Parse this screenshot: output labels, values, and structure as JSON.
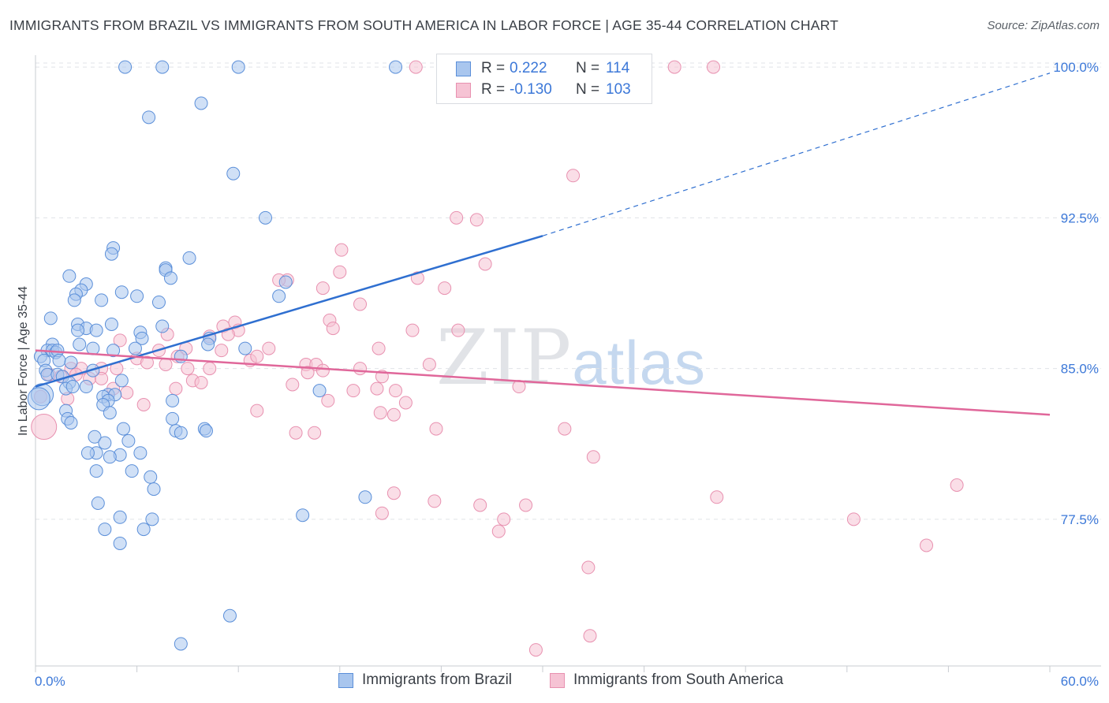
{
  "title": "IMMIGRANTS FROM BRAZIL VS IMMIGRANTS FROM SOUTH AMERICA IN LABOR FORCE | AGE 35-44 CORRELATION CHART",
  "source": "Source: ZipAtlas.com",
  "watermark": {
    "part1": "ZIP",
    "part2": "atlas"
  },
  "legend": {
    "rows": [
      {
        "r_label": "R =",
        "r_value": "0.222",
        "n_label": "N =",
        "n_value": "114"
      },
      {
        "r_label": "R =",
        "r_value": "-0.130",
        "n_label": "N =",
        "n_value": "103"
      }
    ]
  },
  "bottom_legend": [
    "Immigrants from Brazil",
    "Immigrants from South America"
  ],
  "colors": {
    "brazil_fill": "#a9c6ee",
    "brazil_stroke": "#5b8fd9",
    "brazil_line": "#2f6fd0",
    "sa_fill": "#f6c3d4",
    "sa_stroke": "#e891b0",
    "sa_line": "#e0679a",
    "tick_text": "#3c78d8",
    "grid": "#e0e3e8"
  },
  "chart_data": {
    "type": "scatter",
    "title": "IMMIGRANTS FROM BRAZIL VS IMMIGRANTS FROM SOUTH AMERICA IN LABOR FORCE | AGE 35-44 CORRELATION CHART",
    "xlabel": "",
    "ylabel": "In Labor Force | Age 35-44",
    "xlim": [
      0,
      60
    ],
    "ylim": [
      70.2,
      100.2
    ],
    "x_tick_labels": [
      "0.0%",
      "60.0%"
    ],
    "y_ticks": [
      77.5,
      85.0,
      92.5,
      100.0
    ],
    "y_tick_labels": [
      "77.5%",
      "85.0%",
      "92.5%",
      "100.0%"
    ],
    "grid": true,
    "legend_position": "top-center",
    "series": [
      {
        "name": "Immigrants from Brazil",
        "R": 0.222,
        "N": 114,
        "trend": {
          "x0": 0,
          "y0": 84.1,
          "x1": 30,
          "y1": 91.6,
          "dashed_to_x": 60,
          "dashed_to_y": 99.7
        },
        "points": [
          [
            5.3,
            100
          ],
          [
            7.5,
            100
          ],
          [
            12.0,
            100
          ],
          [
            21.3,
            100
          ],
          [
            6.7,
            97.5
          ],
          [
            9.8,
            98.2
          ],
          [
            11.7,
            94.7
          ],
          [
            13.6,
            92.5
          ],
          [
            9.1,
            90.5
          ],
          [
            7.7,
            90.0
          ],
          [
            4.6,
            91.0
          ],
          [
            4.5,
            90.7
          ],
          [
            7.7,
            89.9
          ],
          [
            8.0,
            89.5
          ],
          [
            14.8,
            89.3
          ],
          [
            2.0,
            89.6
          ],
          [
            3.0,
            89.2
          ],
          [
            5.1,
            88.8
          ],
          [
            2.7,
            88.9
          ],
          [
            2.4,
            88.7
          ],
          [
            6.0,
            88.6
          ],
          [
            14.4,
            88.6
          ],
          [
            2.3,
            88.4
          ],
          [
            3.9,
            88.4
          ],
          [
            7.3,
            88.3
          ],
          [
            0.9,
            87.5
          ],
          [
            2.5,
            87.2
          ],
          [
            4.5,
            87.2
          ],
          [
            3.0,
            87.0
          ],
          [
            3.6,
            86.9
          ],
          [
            2.5,
            86.9
          ],
          [
            6.2,
            86.8
          ],
          [
            6.3,
            86.5
          ],
          [
            7.5,
            87.1
          ],
          [
            10.3,
            86.5
          ],
          [
            1.0,
            86.2
          ],
          [
            2.6,
            86.2
          ],
          [
            0.7,
            85.9
          ],
          [
            1.0,
            85.9
          ],
          [
            1.2,
            85.8
          ],
          [
            1.3,
            85.9
          ],
          [
            3.4,
            86.0
          ],
          [
            4.6,
            85.9
          ],
          [
            5.9,
            86.0
          ],
          [
            12.4,
            86.0
          ],
          [
            10.2,
            86.2
          ],
          [
            8.6,
            85.6
          ],
          [
            0.3,
            85.6
          ],
          [
            0.5,
            85.4
          ],
          [
            1.4,
            85.4
          ],
          [
            2.1,
            85.3
          ],
          [
            0.6,
            84.9
          ],
          [
            0.7,
            84.7
          ],
          [
            1.3,
            84.7
          ],
          [
            1.6,
            84.6
          ],
          [
            3.4,
            84.9
          ],
          [
            2.0,
            84.3
          ],
          [
            3.0,
            84.1
          ],
          [
            5.1,
            84.4
          ],
          [
            1.8,
            84.0
          ],
          [
            2.2,
            84.1
          ],
          [
            0.4,
            83.7
          ],
          [
            0.2,
            83.5
          ],
          [
            4.3,
            83.7
          ],
          [
            4.0,
            83.6
          ],
          [
            4.7,
            83.7
          ],
          [
            4.3,
            83.4
          ],
          [
            4.0,
            83.2
          ],
          [
            8.1,
            83.4
          ],
          [
            1.8,
            82.9
          ],
          [
            4.4,
            82.8
          ],
          [
            8.1,
            82.5
          ],
          [
            1.9,
            82.5
          ],
          [
            2.1,
            82.3
          ],
          [
            5.2,
            82.0
          ],
          [
            10.0,
            82.0
          ],
          [
            8.3,
            81.9
          ],
          [
            8.6,
            81.8
          ],
          [
            10.1,
            81.9
          ],
          [
            3.5,
            81.6
          ],
          [
            4.1,
            81.3
          ],
          [
            5.5,
            81.4
          ],
          [
            3.6,
            80.8
          ],
          [
            3.1,
            80.8
          ],
          [
            5.0,
            80.7
          ],
          [
            4.4,
            80.6
          ],
          [
            6.2,
            80.8
          ],
          [
            3.6,
            79.9
          ],
          [
            5.7,
            79.9
          ],
          [
            6.8,
            79.6
          ],
          [
            7.0,
            79.0
          ],
          [
            16.8,
            83.9
          ],
          [
            19.5,
            78.6
          ],
          [
            3.7,
            78.3
          ],
          [
            5.0,
            77.6
          ],
          [
            6.9,
            77.5
          ],
          [
            4.1,
            77.0
          ],
          [
            6.4,
            77.0
          ],
          [
            5.0,
            76.3
          ],
          [
            15.8,
            77.7
          ],
          [
            11.5,
            72.7
          ],
          [
            8.6,
            71.3
          ]
        ]
      },
      {
        "name": "Immigrants from South America",
        "R": -0.13,
        "N": 103,
        "trend": {
          "x0": 0,
          "y0": 85.9,
          "x1": 60,
          "y1": 82.7
        },
        "points": [
          [
            22.5,
            100
          ],
          [
            27.0,
            100
          ],
          [
            37.8,
            100
          ],
          [
            40.1,
            100
          ],
          [
            31.8,
            94.6
          ],
          [
            24.9,
            92.5
          ],
          [
            26.1,
            92.4
          ],
          [
            18.1,
            90.9
          ],
          [
            26.6,
            90.2
          ],
          [
            18.0,
            89.8
          ],
          [
            22.6,
            89.5
          ],
          [
            14.9,
            89.4
          ],
          [
            14.4,
            89.4
          ],
          [
            24.2,
            89.0
          ],
          [
            17.0,
            89.0
          ],
          [
            19.2,
            88.2
          ],
          [
            17.4,
            87.4
          ],
          [
            11.8,
            87.3
          ],
          [
            11.1,
            87.1
          ],
          [
            12.0,
            86.9
          ],
          [
            17.6,
            87.0
          ],
          [
            11.4,
            86.7
          ],
          [
            10.3,
            86.6
          ],
          [
            22.3,
            86.9
          ],
          [
            25.0,
            86.9
          ],
          [
            7.8,
            86.7
          ],
          [
            5.0,
            86.4
          ],
          [
            8.9,
            86.0
          ],
          [
            13.8,
            86.0
          ],
          [
            20.3,
            86.0
          ],
          [
            7.3,
            85.9
          ],
          [
            11.0,
            85.9
          ],
          [
            12.7,
            85.4
          ],
          [
            13.1,
            85.6
          ],
          [
            8.4,
            85.6
          ],
          [
            6.0,
            85.5
          ],
          [
            6.6,
            85.3
          ],
          [
            7.7,
            85.2
          ],
          [
            16.0,
            85.2
          ],
          [
            16.6,
            85.2
          ],
          [
            19.2,
            85.0
          ],
          [
            23.3,
            85.2
          ],
          [
            2.1,
            85.0
          ],
          [
            2.7,
            85.0
          ],
          [
            3.9,
            85.0
          ],
          [
            4.8,
            85.0
          ],
          [
            9.0,
            85.0
          ],
          [
            10.3,
            85.0
          ],
          [
            16.1,
            84.8
          ],
          [
            17.0,
            84.9
          ],
          [
            20.5,
            84.6
          ],
          [
            2.4,
            84.7
          ],
          [
            1.5,
            84.6
          ],
          [
            0.8,
            84.7
          ],
          [
            3.2,
            84.5
          ],
          [
            3.9,
            84.5
          ],
          [
            9.3,
            84.4
          ],
          [
            9.8,
            84.3
          ],
          [
            15.2,
            84.2
          ],
          [
            20.2,
            84.0
          ],
          [
            28.6,
            84.1
          ],
          [
            4.6,
            84.0
          ],
          [
            8.3,
            84.0
          ],
          [
            5.4,
            83.8
          ],
          [
            18.8,
            83.9
          ],
          [
            21.3,
            83.9
          ],
          [
            0.3,
            83.6
          ],
          [
            1.9,
            83.5
          ],
          [
            17.3,
            83.4
          ],
          [
            21.9,
            83.3
          ],
          [
            6.4,
            83.2
          ],
          [
            13.1,
            82.9
          ],
          [
            20.4,
            82.8
          ],
          [
            21.2,
            82.7
          ],
          [
            23.7,
            82.0
          ],
          [
            31.3,
            82.0
          ],
          [
            16.5,
            81.8
          ],
          [
            15.4,
            81.8
          ],
          [
            33.0,
            80.6
          ],
          [
            54.5,
            79.2
          ],
          [
            21.2,
            78.8
          ],
          [
            23.6,
            78.4
          ],
          [
            26.3,
            78.2
          ],
          [
            29.0,
            78.2
          ],
          [
            40.3,
            78.6
          ],
          [
            20.5,
            77.8
          ],
          [
            27.7,
            77.5
          ],
          [
            27.4,
            76.9
          ],
          [
            48.4,
            77.5
          ],
          [
            52.7,
            76.2
          ],
          [
            32.7,
            75.1
          ],
          [
            32.8,
            71.7
          ],
          [
            29.6,
            71.0
          ],
          [
            0.5,
            82.1
          ]
        ]
      }
    ]
  }
}
